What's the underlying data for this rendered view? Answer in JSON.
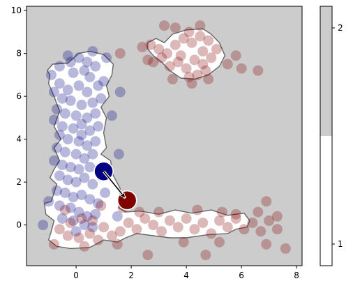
{
  "chart_data": {
    "type": "scatter",
    "xlim": [
      -1.8,
      8.2
    ],
    "ylim": [
      -1.9,
      10.2
    ],
    "x_ticks": [
      0,
      2,
      4,
      6,
      8
    ],
    "y_ticks": [
      0,
      2,
      4,
      6,
      8,
      10
    ],
    "grid": false,
    "background_color": "#cccccc",
    "region_color": "#ffffff",
    "region_outline_color": "#666666",
    "blue_color": "#000080",
    "red_color": "#800000",
    "highlight": {
      "from": {
        "x": 1.0,
        "y": 2.5
      },
      "to": {
        "x": 1.85,
        "y": 1.15
      }
    },
    "colorbar": {
      "ticks": [
        {
          "label": "1",
          "value": 1
        },
        {
          "label": "2",
          "value": 2
        }
      ],
      "lower_color": "#ffffff",
      "upper_color": "#cccccc",
      "split_fraction": 0.5
    },
    "region_polygons": [
      [
        [
          -1.15,
          1.0
        ],
        [
          -0.9,
          1.1
        ],
        [
          -0.7,
          1.9
        ],
        [
          -0.95,
          2.2
        ],
        [
          -0.8,
          2.6
        ],
        [
          -0.6,
          3.0
        ],
        [
          -0.8,
          3.6
        ],
        [
          -0.55,
          4.0
        ],
        [
          -0.8,
          4.6
        ],
        [
          -0.6,
          5.3
        ],
        [
          -0.8,
          6.0
        ],
        [
          -1.0,
          6.6
        ],
        [
          -0.95,
          7.0
        ],
        [
          -1.05,
          7.2
        ],
        [
          -0.85,
          7.5
        ],
        [
          -0.3,
          7.55
        ],
        [
          0.1,
          8.0
        ],
        [
          0.5,
          8.1
        ],
        [
          1.0,
          7.95
        ],
        [
          1.35,
          7.5
        ],
        [
          1.3,
          7.0
        ],
        [
          1.1,
          6.5
        ],
        [
          1.2,
          6.0
        ],
        [
          0.9,
          5.5
        ],
        [
          1.1,
          5.0
        ],
        [
          1.0,
          4.3
        ],
        [
          1.1,
          3.6
        ],
        [
          0.9,
          3.3
        ],
        [
          1.25,
          3.0
        ],
        [
          1.35,
          2.3
        ],
        [
          1.6,
          1.7
        ],
        [
          1.55,
          0.8
        ],
        [
          1.8,
          0.6
        ],
        [
          2.3,
          0.65
        ],
        [
          3.0,
          0.5
        ],
        [
          3.6,
          0.7
        ],
        [
          4.2,
          0.55
        ],
        [
          4.9,
          0.7
        ],
        [
          5.5,
          0.45
        ],
        [
          6.1,
          0.55
        ],
        [
          6.3,
          0.2
        ],
        [
          6.2,
          -0.1
        ],
        [
          5.8,
          -0.2
        ],
        [
          5.5,
          -0.4
        ],
        [
          4.8,
          -0.45
        ],
        [
          4.0,
          -0.6
        ],
        [
          3.4,
          -0.6
        ],
        [
          2.8,
          -0.5
        ],
        [
          2.2,
          -0.4
        ],
        [
          1.8,
          -0.6
        ],
        [
          1.5,
          -0.8
        ],
        [
          1.0,
          -0.7
        ],
        [
          0.5,
          -1.05
        ],
        [
          -0.2,
          -1.1
        ],
        [
          -0.7,
          -1.0
        ],
        [
          -1.0,
          -0.7
        ],
        [
          -0.9,
          -0.3
        ],
        [
          -0.8,
          0.2
        ],
        [
          -1.1,
          0.5
        ]
      ],
      [
        [
          2.6,
          8.5
        ],
        [
          2.9,
          8.7
        ],
        [
          3.2,
          8.5
        ],
        [
          3.5,
          8.9
        ],
        [
          4.0,
          9.1
        ],
        [
          4.6,
          9.15
        ],
        [
          4.9,
          8.9
        ],
        [
          5.2,
          8.5
        ],
        [
          5.4,
          7.9
        ],
        [
          5.2,
          7.4
        ],
        [
          4.8,
          7.0
        ],
        [
          4.3,
          6.8
        ],
        [
          3.8,
          6.85
        ],
        [
          3.4,
          7.2
        ],
        [
          3.1,
          7.6
        ],
        [
          2.8,
          7.9
        ],
        [
          2.6,
          8.2
        ]
      ]
    ],
    "series": [
      {
        "color": "#000080",
        "points": [
          [
            -0.9,
            7.0
          ],
          [
            -0.6,
            7.4
          ],
          [
            -0.3,
            7.9
          ],
          [
            0.1,
            7.8
          ],
          [
            0.4,
            7.6
          ],
          [
            0.7,
            7.4
          ],
          [
            0.3,
            7.2
          ],
          [
            -0.1,
            7.1
          ],
          [
            0.5,
            6.9
          ],
          [
            -0.6,
            6.6
          ],
          [
            -0.3,
            6.3
          ],
          [
            0.1,
            6.5
          ],
          [
            0.4,
            6.2
          ],
          [
            0.8,
            6.5
          ],
          [
            1.0,
            6.7
          ],
          [
            -0.8,
            6.2
          ],
          [
            -0.5,
            5.9
          ],
          [
            -0.2,
            5.8
          ],
          [
            0.2,
            5.6
          ],
          [
            0.6,
            5.7
          ],
          [
            0.9,
            5.9
          ],
          [
            -0.7,
            5.4
          ],
          [
            -0.4,
            5.2
          ],
          [
            0.0,
            5.1
          ],
          [
            0.4,
            5.0
          ],
          [
            0.7,
            5.2
          ],
          [
            -0.8,
            4.9
          ],
          [
            -0.5,
            4.6
          ],
          [
            -0.1,
            4.5
          ],
          [
            0.2,
            4.7
          ],
          [
            0.5,
            4.4
          ],
          [
            0.8,
            4.6
          ],
          [
            -0.6,
            4.2
          ],
          [
            -0.3,
            4.0
          ],
          [
            0.1,
            3.9
          ],
          [
            0.4,
            3.7
          ],
          [
            0.7,
            3.9
          ],
          [
            -0.7,
            3.6
          ],
          [
            -0.4,
            3.4
          ],
          [
            0.0,
            3.3
          ],
          [
            0.3,
            3.1
          ],
          [
            0.6,
            3.3
          ],
          [
            -0.8,
            3.0
          ],
          [
            -0.5,
            2.8
          ],
          [
            -0.2,
            2.7
          ],
          [
            0.1,
            2.6
          ],
          [
            0.5,
            2.7
          ],
          [
            -0.6,
            2.3
          ],
          [
            -0.3,
            2.1
          ],
          [
            0.0,
            2.0
          ],
          [
            0.3,
            2.2
          ],
          [
            0.6,
            1.9
          ],
          [
            -0.7,
            1.6
          ],
          [
            -0.4,
            1.5
          ],
          [
            -0.1,
            1.3
          ],
          [
            0.2,
            1.4
          ],
          [
            0.5,
            1.2
          ],
          [
            0.8,
            1.0
          ],
          [
            -1.0,
            1.1
          ],
          [
            -0.6,
            0.9
          ],
          [
            -0.2,
            0.8
          ],
          [
            0.1,
            0.6
          ],
          [
            0.4,
            0.4
          ],
          [
            0.7,
            0.5
          ],
          [
            -0.5,
            0.3
          ],
          [
            -0.1,
            0.2
          ],
          [
            0.3,
            0.0
          ],
          [
            0.6,
            -0.1
          ],
          [
            -1.2,
            0.0
          ],
          [
            0.0,
            -0.3
          ],
          [
            1.05,
            1.5
          ],
          [
            1.5,
            0.4
          ],
          [
            1.55,
            3.3
          ],
          [
            1.3,
            5.1
          ],
          [
            1.6,
            6.2
          ],
          [
            1.1,
            7.8
          ],
          [
            0.6,
            8.1
          ],
          [
            -0.2,
            7.6
          ],
          [
            0.9,
            2.3
          ],
          [
            0.2,
            4.2
          ]
        ]
      },
      {
        "color": "#800000",
        "points": [
          [
            -0.6,
            -0.2
          ],
          [
            -0.3,
            -0.5
          ],
          [
            0.1,
            -0.6
          ],
          [
            0.5,
            -0.4
          ],
          [
            0.8,
            -0.7
          ],
          [
            -0.2,
            0.1
          ],
          [
            0.2,
            0.3
          ],
          [
            0.6,
            0.2
          ],
          [
            1.0,
            -0.1
          ],
          [
            1.3,
            -0.5
          ],
          [
            1.6,
            -0.3
          ],
          [
            1.9,
            0.1
          ],
          [
            2.2,
            -0.2
          ],
          [
            2.5,
            0.3
          ],
          [
            2.8,
            0.0
          ],
          [
            3.1,
            -0.3
          ],
          [
            3.4,
            0.2
          ],
          [
            3.7,
            -0.1
          ],
          [
            4.0,
            0.3
          ],
          [
            4.3,
            -0.2
          ],
          [
            4.6,
            0.1
          ],
          [
            4.9,
            -0.4
          ],
          [
            5.2,
            0.2
          ],
          [
            5.5,
            -0.1
          ],
          [
            5.8,
            0.3
          ],
          [
            6.1,
            -0.2
          ],
          [
            6.4,
            0.1
          ],
          [
            6.7,
            -0.3
          ],
          [
            7.0,
            0.2
          ],
          [
            7.3,
            -0.2
          ],
          [
            7.6,
            -1.1
          ],
          [
            6.9,
            -0.9
          ],
          [
            5.2,
            -0.8
          ],
          [
            4.7,
            -1.4
          ],
          [
            3.9,
            -0.8
          ],
          [
            2.6,
            -1.4
          ],
          [
            1.5,
            -0.9
          ],
          [
            0.3,
            -1.0
          ],
          [
            -0.8,
            -0.9
          ],
          [
            6.9,
            1.1
          ],
          [
            7.3,
            0.4
          ],
          [
            6.6,
            0.6
          ],
          [
            5.8,
            0.5
          ],
          [
            5.3,
            0.6
          ],
          [
            4.4,
            0.7
          ],
          [
            3.0,
            0.6
          ],
          [
            2.3,
            0.6
          ],
          [
            1.7,
            0.8
          ],
          [
            0.9,
            0.9
          ],
          [
            -0.4,
            0.7
          ],
          [
            2.7,
            8.4
          ],
          [
            3.0,
            8.2
          ],
          [
            3.3,
            8.0
          ],
          [
            3.6,
            8.4
          ],
          [
            3.9,
            8.7
          ],
          [
            4.2,
            8.5
          ],
          [
            4.5,
            8.8
          ],
          [
            4.8,
            8.6
          ],
          [
            5.1,
            8.2
          ],
          [
            4.9,
            7.8
          ],
          [
            4.6,
            7.5
          ],
          [
            4.3,
            7.7
          ],
          [
            4.0,
            7.3
          ],
          [
            3.7,
            7.6
          ],
          [
            3.4,
            7.4
          ],
          [
            3.1,
            7.8
          ],
          [
            2.8,
            7.6
          ],
          [
            4.4,
            7.0
          ],
          [
            4.7,
            7.2
          ],
          [
            4.1,
            6.9
          ],
          [
            3.6,
            9.2
          ],
          [
            4.1,
            9.0
          ],
          [
            4.5,
            9.3
          ],
          [
            3.2,
            9.3
          ],
          [
            2.4,
            8.3
          ],
          [
            2.6,
            7.7
          ],
          [
            3.5,
            6.8
          ],
          [
            5.5,
            7.5
          ],
          [
            5.8,
            7.9
          ],
          [
            6.0,
            7.3
          ],
          [
            6.6,
            7.2
          ],
          [
            1.6,
            8.0
          ],
          [
            4.8,
            6.8
          ],
          [
            4.2,
            6.6
          ],
          [
            3.8,
            7.9
          ],
          [
            4.6,
            8.1
          ]
        ]
      }
    ]
  }
}
